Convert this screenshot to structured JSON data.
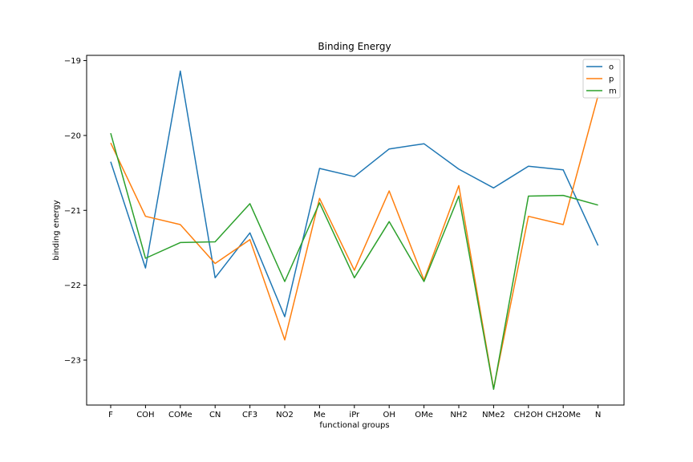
{
  "chart_data": {
    "type": "line",
    "title": "Binding Energy",
    "xlabel": "functional groups",
    "ylabel": "binding energy",
    "categories": [
      "F",
      "COH",
      "COMe",
      "CN",
      "CF3",
      "NO2",
      "Me",
      "iPr",
      "OH",
      "OMe",
      "NH2",
      "NMe2",
      "CH2OH",
      "CH2OMe",
      "N"
    ],
    "ylim": [
      -23.6,
      -18.93
    ],
    "yticks": [
      -23,
      -22,
      -21,
      -20,
      -19
    ],
    "ytick_labels": [
      "−23",
      "−22",
      "−21",
      "−20",
      "−19"
    ],
    "grid": false,
    "legend": "top-right",
    "series": [
      {
        "name": "o",
        "color": "#1f77b4",
        "values": [
          -20.35,
          -21.77,
          -19.14,
          -21.9,
          -21.3,
          -22.42,
          -20.44,
          -20.55,
          -20.18,
          -20.11,
          -20.45,
          -20.7,
          -20.41,
          -20.46,
          -21.47
        ]
      },
      {
        "name": "p",
        "color": "#ff7f0e",
        "values": [
          -20.1,
          -21.08,
          -21.19,
          -21.71,
          -21.39,
          -22.73,
          -20.84,
          -21.8,
          -20.74,
          -21.93,
          -20.67,
          -23.38,
          -21.08,
          -21.19,
          -19.47
        ]
      },
      {
        "name": "m",
        "color": "#2ca02c",
        "values": [
          -19.97,
          -21.64,
          -21.43,
          -21.42,
          -20.91,
          -21.95,
          -20.9,
          -21.9,
          -21.15,
          -21.95,
          -20.81,
          -23.39,
          -20.81,
          -20.8,
          -20.93
        ]
      }
    ]
  }
}
